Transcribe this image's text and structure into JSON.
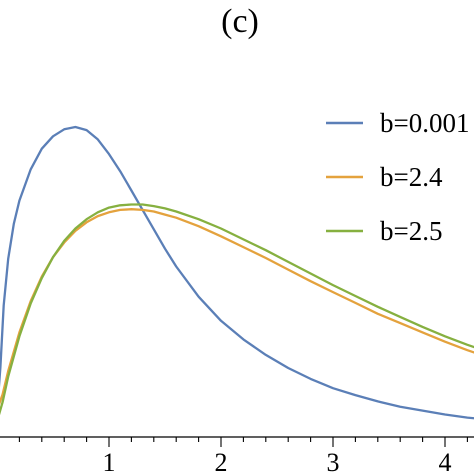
{
  "chart_data": {
    "type": "line",
    "title": "(c)",
    "xlabel": "",
    "ylabel": "",
    "xlim": [
      0.0,
      4.6
    ],
    "ylim": [
      0.0,
      0.42
    ],
    "x_ticks": [
      1,
      2,
      3,
      4
    ],
    "x_tick_labels": [
      "1",
      "2",
      "3",
      "4"
    ],
    "x_minor_ticks": [
      0.2,
      0.4,
      0.6,
      0.8,
      1.2,
      1.4,
      1.6,
      1.8,
      2.2,
      2.4,
      2.6,
      2.8,
      3.2,
      3.4,
      3.6,
      3.8,
      4.2,
      4.4
    ],
    "legend_position": "top-right",
    "grid": false,
    "series": [
      {
        "name": "b=0.001",
        "color": "#5b7fb7",
        "x": [
          0.0,
          0.03,
          0.06,
          0.1,
          0.15,
          0.2,
          0.3,
          0.4,
          0.5,
          0.6,
          0.7,
          0.8,
          0.9,
          1.0,
          1.1,
          1.2,
          1.3,
          1.4,
          1.5,
          1.6,
          1.8,
          2.0,
          2.2,
          2.4,
          2.6,
          2.8,
          3.0,
          3.2,
          3.4,
          3.6,
          3.8,
          4.0,
          4.2,
          4.4,
          4.6
        ],
        "y": [
          0.033,
          0.09,
          0.17,
          0.23,
          0.275,
          0.305,
          0.345,
          0.372,
          0.388,
          0.397,
          0.4,
          0.396,
          0.384,
          0.365,
          0.343,
          0.318,
          0.293,
          0.268,
          0.243,
          0.22,
          0.181,
          0.15,
          0.126,
          0.106,
          0.089,
          0.075,
          0.063,
          0.054,
          0.046,
          0.039,
          0.034,
          0.029,
          0.025,
          0.022,
          0.018
        ]
      },
      {
        "name": "b=2.4",
        "color": "#e4a23d",
        "x": [
          0.0,
          0.05,
          0.1,
          0.2,
          0.3,
          0.4,
          0.5,
          0.6,
          0.7,
          0.8,
          0.9,
          1.0,
          1.1,
          1.2,
          1.3,
          1.4,
          1.5,
          1.6,
          1.8,
          2.0,
          2.2,
          2.4,
          2.6,
          2.8,
          3.0,
          3.2,
          3.4,
          3.6,
          3.8,
          4.0,
          4.2,
          4.4,
          4.6
        ],
        "y": [
          0.035,
          0.055,
          0.085,
          0.135,
          0.175,
          0.207,
          0.232,
          0.251,
          0.266,
          0.277,
          0.285,
          0.29,
          0.293,
          0.294,
          0.293,
          0.291,
          0.287,
          0.283,
          0.272,
          0.259,
          0.245,
          0.231,
          0.216,
          0.201,
          0.187,
          0.173,
          0.159,
          0.147,
          0.135,
          0.123,
          0.112,
          0.102,
          0.092
        ]
      },
      {
        "name": "b=2.5",
        "color": "#86b040",
        "x": [
          0.0,
          0.05,
          0.1,
          0.2,
          0.3,
          0.4,
          0.5,
          0.6,
          0.7,
          0.8,
          0.9,
          1.0,
          1.1,
          1.2,
          1.3,
          1.4,
          1.5,
          1.6,
          1.8,
          2.0,
          2.2,
          2.4,
          2.6,
          2.8,
          3.0,
          3.2,
          3.4,
          3.6,
          3.8,
          4.0,
          4.2,
          4.4,
          4.6
        ],
        "y": [
          0.02,
          0.045,
          0.078,
          0.13,
          0.172,
          0.205,
          0.232,
          0.253,
          0.269,
          0.281,
          0.29,
          0.296,
          0.299,
          0.3,
          0.3,
          0.298,
          0.295,
          0.291,
          0.281,
          0.269,
          0.255,
          0.241,
          0.226,
          0.211,
          0.196,
          0.182,
          0.168,
          0.155,
          0.142,
          0.13,
          0.119,
          0.109,
          0.098
        ]
      }
    ]
  }
}
